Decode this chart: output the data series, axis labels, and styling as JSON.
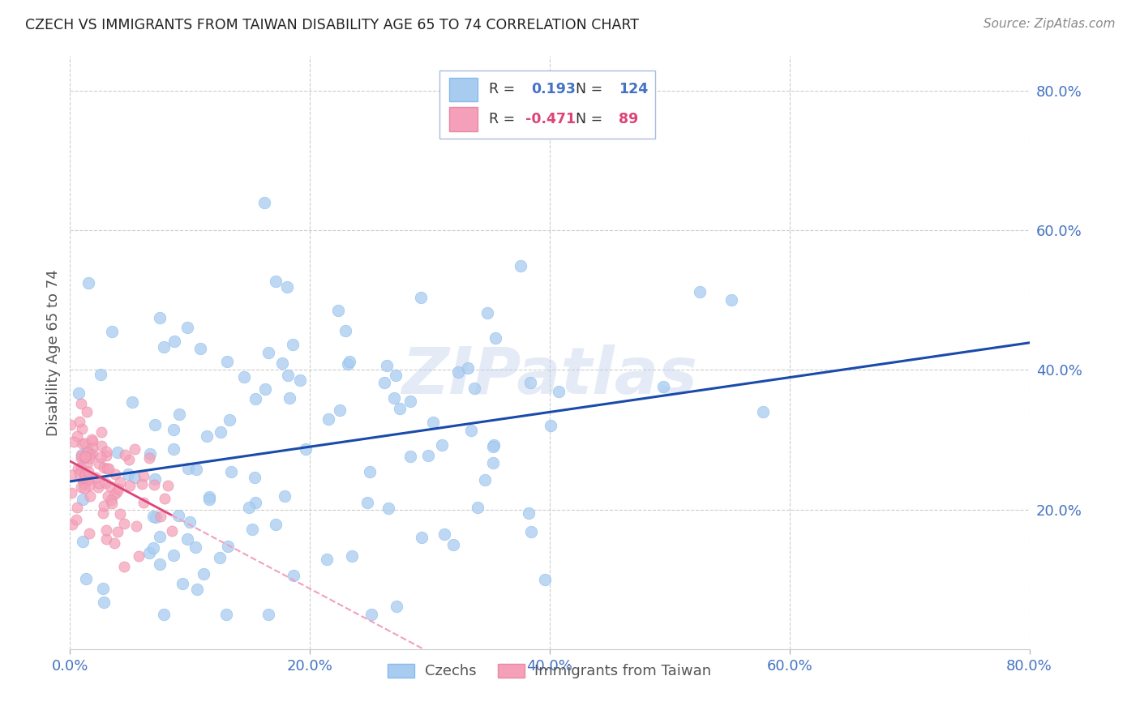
{
  "title": "CZECH VS IMMIGRANTS FROM TAIWAN DISABILITY AGE 65 TO 74 CORRELATION CHART",
  "source": "Source: ZipAtlas.com",
  "ylabel": "Disability Age 65 to 74",
  "xlim": [
    0.0,
    0.8
  ],
  "ylim": [
    0.0,
    0.85
  ],
  "xtick_labels": [
    "0.0%",
    "20.0%",
    "40.0%",
    "60.0%",
    "80.0%"
  ],
  "xtick_values": [
    0.0,
    0.2,
    0.4,
    0.6,
    0.8
  ],
  "ytick_labels": [
    "20.0%",
    "40.0%",
    "60.0%",
    "80.0%"
  ],
  "ytick_values": [
    0.2,
    0.4,
    0.6,
    0.8
  ],
  "watermark": "ZIPatlas",
  "blue_R": 0.193,
  "blue_N": 124,
  "pink_R": -0.471,
  "pink_N": 89,
  "background_color": "#ffffff",
  "grid_color": "#cccccc",
  "title_color": "#222222",
  "tick_color": "#4472c4",
  "blue_scatter_color": "#a8ccf0",
  "pink_scatter_color": "#f4a0b8",
  "blue_line_color": "#1a4aaa",
  "pink_line_color": "#dd4477",
  "pink_line_dashed_color": "#f0a0c0",
  "R1": "0.193",
  "N1": "124",
  "R2": "-0.471",
  "N2": "89"
}
